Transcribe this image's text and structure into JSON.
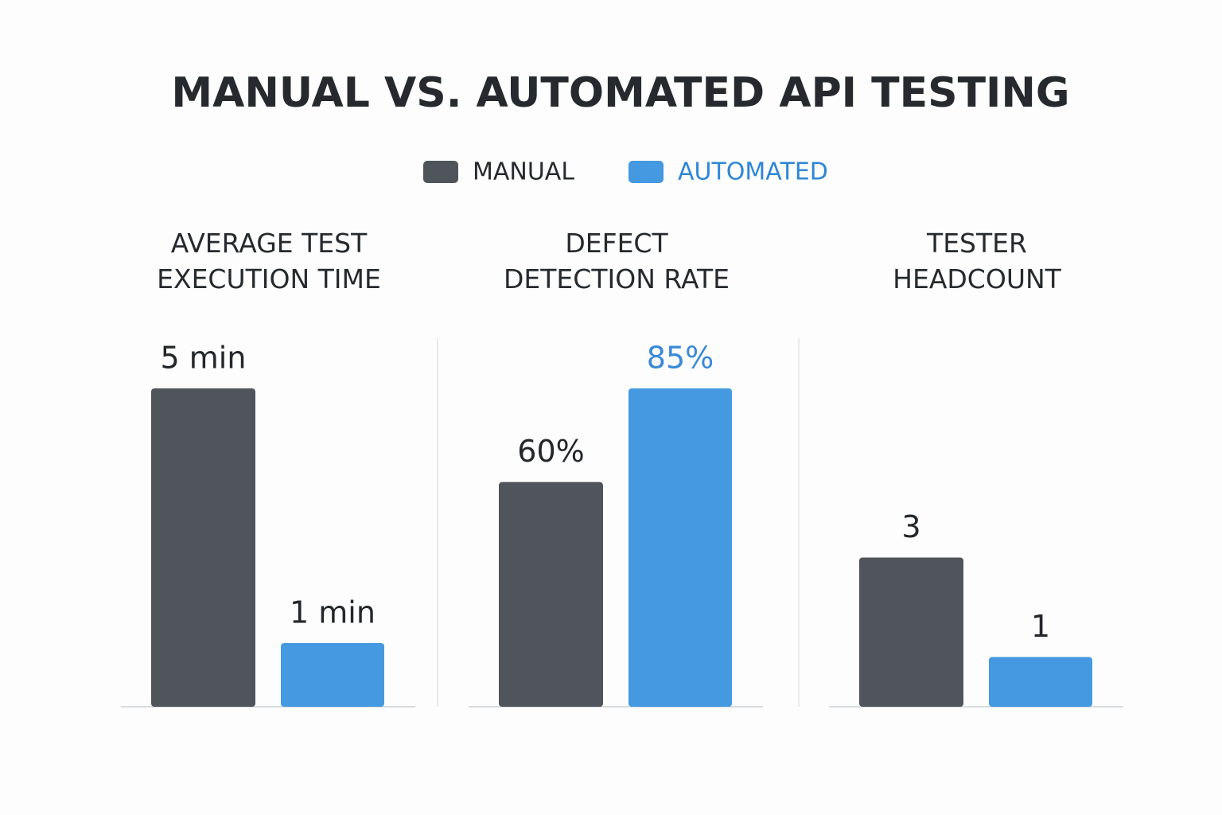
{
  "title": "MANUAL VS. AUTOMATED API TESTING",
  "legend": [
    {
      "name": "MANUAL",
      "color": "#50555b",
      "text_color": "#262a2e"
    },
    {
      "name": "AUTOMATED",
      "color": "#4499e0",
      "text_color": "#2f86d6"
    }
  ],
  "chart_data": [
    {
      "type": "bar",
      "title": "AVERAGE TEST\nEXECUTION TIME",
      "values": [
        5,
        1
      ],
      "value_labels": [
        "5 min",
        "1 min"
      ],
      "label_colors": [
        "#23272b",
        "#23272b"
      ],
      "ylim": [
        0,
        5
      ]
    },
    {
      "type": "bar",
      "title": "DEFECT\nDETECTION RATE",
      "values": [
        60,
        85
      ],
      "value_labels": [
        "60%",
        "85%"
      ],
      "label_colors": [
        "#23272b",
        "#3a8ad8"
      ],
      "ylim": [
        0,
        85
      ]
    },
    {
      "type": "bar",
      "title": "TESTER\nHEADCOUNT",
      "values": [
        3,
        1
      ],
      "value_labels": [
        "3",
        "1"
      ],
      "label_colors": [
        "#23272b",
        "#23272b"
      ],
      "ylim": [
        0,
        6.4
      ]
    }
  ]
}
